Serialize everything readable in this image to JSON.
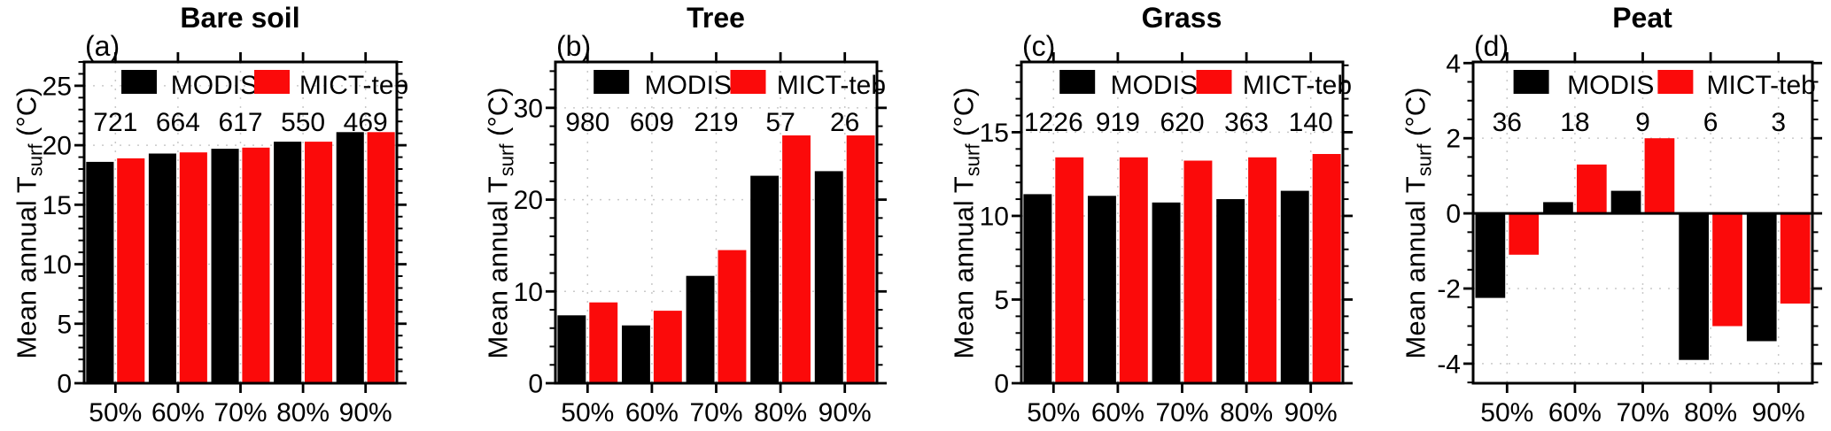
{
  "figure_type": "multi-panel bar figure",
  "labels": {
    "ylabel_main": "Mean annual T",
    "ylabel_sub": "surf",
    "ylabel_unit": " (°C)"
  },
  "legend": {
    "items": [
      {
        "label": "MODIS",
        "color": "#000000"
      },
      {
        "label": "MICT-teb",
        "color": "#fb0a0a"
      }
    ],
    "position": "top-inside"
  },
  "chart_data": [
    {
      "type": "bar",
      "panel_label": "(a)",
      "title": "Bare soil",
      "categories": [
        "50%",
        "60%",
        "70%",
        "80%",
        "90%"
      ],
      "sample_counts": [
        721,
        664,
        617,
        550,
        469
      ],
      "series": [
        {
          "name": "MODIS",
          "color": "#000000",
          "values": [
            18.6,
            19.3,
            19.7,
            20.3,
            21.1
          ]
        },
        {
          "name": "MICT-teb",
          "color": "#fb0a0a",
          "values": [
            18.9,
            19.4,
            19.8,
            20.3,
            21.1
          ]
        }
      ],
      "xlabel": "",
      "ylabel": "Mean annual Tsurf (°C)",
      "ylim": [
        0,
        27.0
      ],
      "yticks": [
        0,
        5,
        10,
        15,
        20,
        25
      ],
      "minor_tick_step": 1,
      "grid": true
    },
    {
      "type": "bar",
      "panel_label": "(b)",
      "title": "Tree",
      "categories": [
        "50%",
        "60%",
        "70%",
        "80%",
        "90%"
      ],
      "sample_counts": [
        980,
        609,
        219,
        57,
        26
      ],
      "series": [
        {
          "name": "MODIS",
          "color": "#000000",
          "values": [
            7.4,
            6.3,
            11.7,
            22.6,
            23.1
          ]
        },
        {
          "name": "MICT-teb",
          "color": "#fb0a0a",
          "values": [
            8.8,
            7.9,
            14.5,
            27.0,
            27.0
          ]
        }
      ],
      "xlabel": "",
      "ylabel": "Mean annual Tsurf (°C)",
      "ylim": [
        0,
        35.0
      ],
      "yticks": [
        0,
        10,
        20,
        30
      ],
      "minor_tick_step": 2,
      "grid": true
    },
    {
      "type": "bar",
      "panel_label": "(c)",
      "title": "Grass",
      "categories": [
        "50%",
        "60%",
        "70%",
        "80%",
        "90%"
      ],
      "sample_counts": [
        1226,
        919,
        620,
        363,
        140
      ],
      "series": [
        {
          "name": "MODIS",
          "color": "#000000",
          "values": [
            11.3,
            11.2,
            10.8,
            11.0,
            11.5
          ]
        },
        {
          "name": "MICT-teb",
          "color": "#fb0a0a",
          "values": [
            13.5,
            13.5,
            13.3,
            13.5,
            13.7
          ]
        }
      ],
      "xlabel": "",
      "ylabel": "Mean annual Tsurf (°C)",
      "ylim": [
        0,
        19.2
      ],
      "yticks": [
        0,
        5,
        10,
        15
      ],
      "minor_tick_step": 1,
      "grid": true
    },
    {
      "type": "bar",
      "panel_label": "(d)",
      "title": "Peat",
      "categories": [
        "50%",
        "60%",
        "70%",
        "80%",
        "90%"
      ],
      "sample_counts": [
        36,
        18,
        9,
        6,
        3
      ],
      "series": [
        {
          "name": "MODIS",
          "color": "#000000",
          "values": [
            -2.25,
            0.3,
            0.6,
            -3.9,
            -3.4
          ]
        },
        {
          "name": "MICT-teb",
          "color": "#fb0a0a",
          "values": [
            -1.1,
            1.3,
            2.0,
            -3.0,
            -2.4
          ]
        }
      ],
      "xlabel": "",
      "ylabel": "Mean annual Tsurf (°C)",
      "ylim": [
        -4.52,
        4.03
      ],
      "yticks": [
        -4,
        -2,
        0,
        2,
        4
      ],
      "minor_tick_step": 0.5,
      "grid": true
    }
  ]
}
